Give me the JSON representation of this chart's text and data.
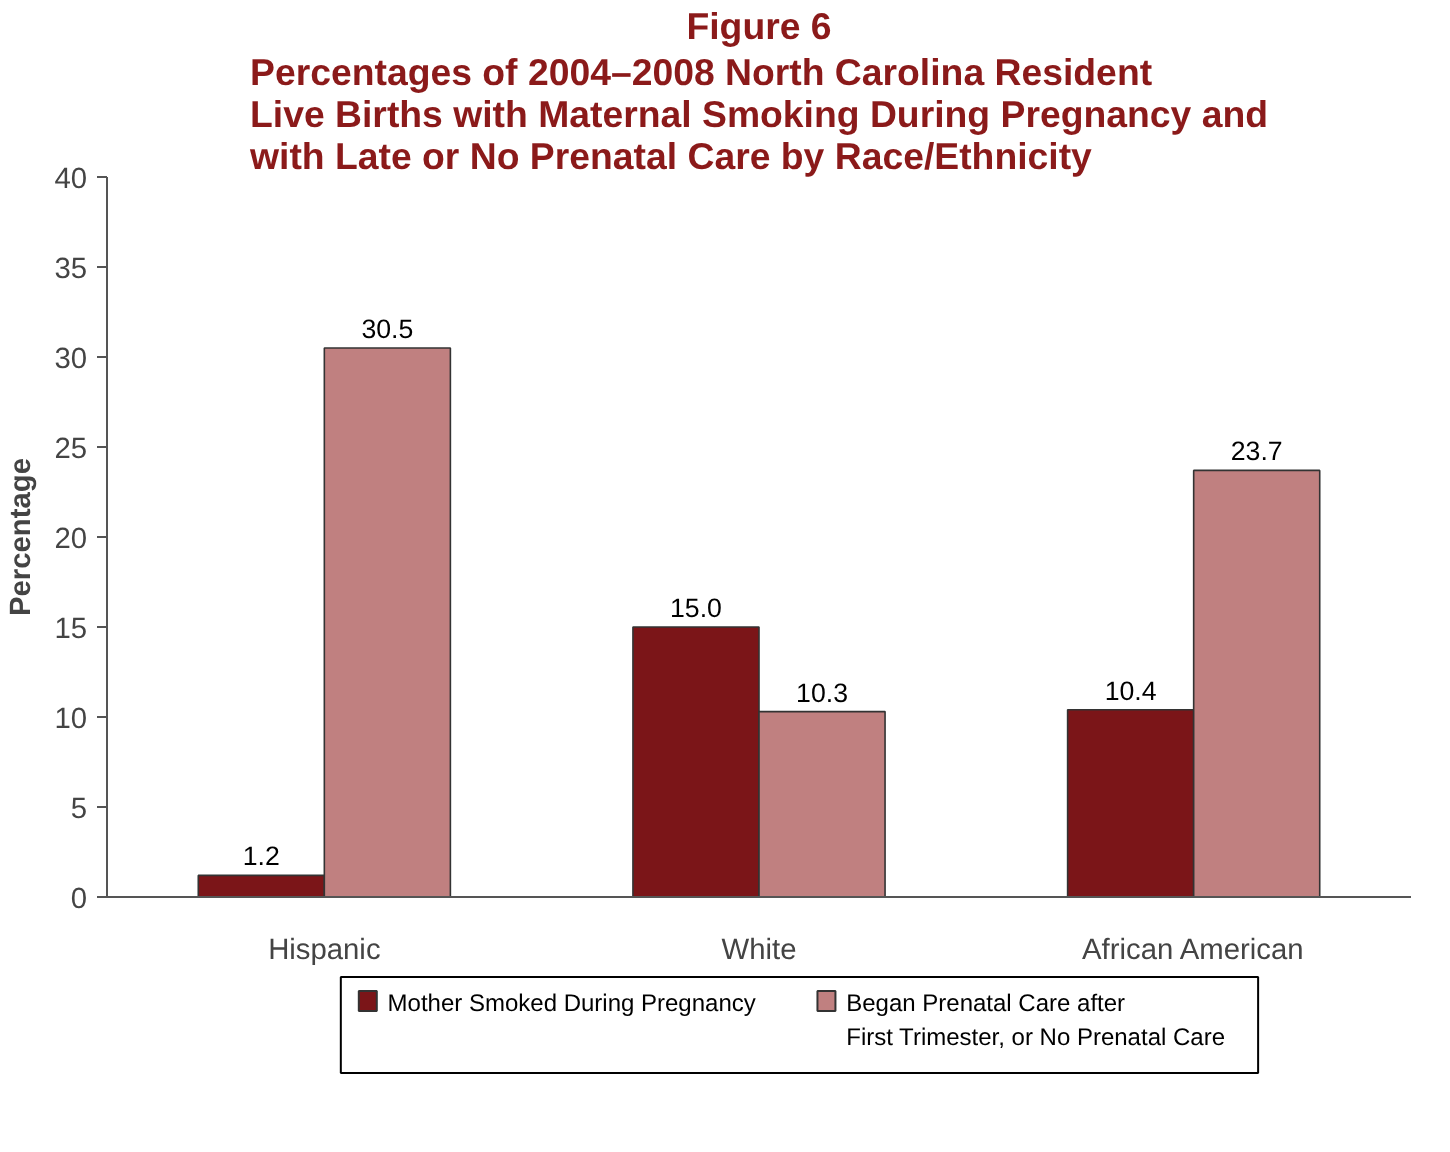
{
  "chart_data": {
    "type": "bar",
    "title": "Figure 6",
    "subtitle": "Percentages of 2004–2008 North Carolina Resident\nLive Births with Maternal Smoking During Pregnancy and\nwith Late or No Prenatal Care by Race/Ethnicity",
    "ylabel": "Percentage",
    "categories": [
      "Hispanic",
      "White",
      "African American"
    ],
    "series": [
      {
        "name": "Mother Smoked During Pregnancy",
        "color": "#7b1518",
        "values": [
          1.2,
          15.0,
          10.4
        ],
        "value_labels": [
          "1.2",
          "15.0",
          "10.4"
        ]
      },
      {
        "name": "Began Prenatal Care after\nFirst Trimester, or No Prenatal Care",
        "color": "#c08080",
        "values": [
          30.5,
          10.3,
          23.7
        ],
        "value_labels": [
          "30.5",
          "10.3",
          "23.7"
        ]
      }
    ],
    "ylim": [
      0,
      40
    ],
    "yticks": [
      0,
      5,
      10,
      15,
      20,
      25,
      30,
      35,
      40
    ],
    "grid": false,
    "legend": "bottom"
  }
}
